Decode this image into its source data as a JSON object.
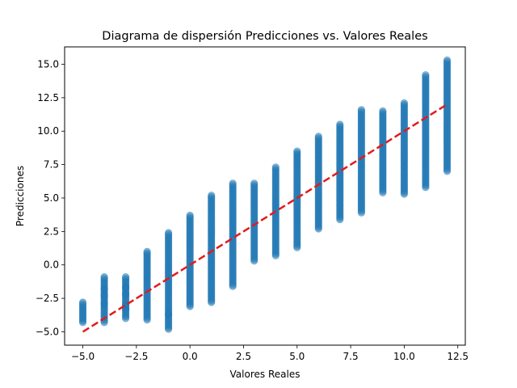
{
  "chart_data": {
    "type": "scatter",
    "title": "Diagrama de dispersión Predicciones vs. Valores Reales",
    "xlabel": "Valores Reales",
    "ylabel": "Predicciones",
    "xlim": [
      -5.85,
      12.85
    ],
    "ylim": [
      -6.0,
      16.3
    ],
    "x_ticks": [
      -5.0,
      -2.5,
      0.0,
      2.5,
      5.0,
      7.5,
      10.0,
      12.5
    ],
    "x_tick_labels": [
      "−5.0",
      "−2.5",
      "0.0",
      "2.5",
      "5.0",
      "7.5",
      "10.0",
      "12.5"
    ],
    "y_ticks": [
      -5.0,
      -2.5,
      0.0,
      2.5,
      5.0,
      7.5,
      10.0,
      12.5,
      15.0
    ],
    "y_tick_labels": [
      "−5.0",
      "−2.5",
      "0.0",
      "2.5",
      "5.0",
      "7.5",
      "10.0",
      "12.5",
      "15.0"
    ],
    "grid": false,
    "point_color": "#1f77b4",
    "point_alpha": 0.5,
    "reference_line": {
      "x": [
        -5,
        12
      ],
      "y": [
        -5,
        12
      ],
      "color": "#e41a1c",
      "style": "dashed"
    },
    "columns": [
      {
        "x": -5,
        "min": -4.3,
        "max": -2.8,
        "extra": []
      },
      {
        "x": -4,
        "min": -4.3,
        "max": -0.9,
        "extra": [
          -2.9,
          -2.3,
          -1.8
        ]
      },
      {
        "x": -3,
        "min": -4.0,
        "max": -0.9,
        "extra": [
          -3.3,
          -3.0,
          -2.2,
          -1.7
        ]
      },
      {
        "x": -2,
        "min": -4.1,
        "max": 1.0,
        "extra": []
      },
      {
        "x": -1,
        "min": -4.8,
        "max": 2.4,
        "extra": [
          -3.7
        ]
      },
      {
        "x": 0,
        "min": -3.1,
        "max": 3.7,
        "extra": []
      },
      {
        "x": 1,
        "min": -2.8,
        "max": 5.2,
        "extra": []
      },
      {
        "x": 2,
        "min": -1.6,
        "max": 6.1,
        "extra": []
      },
      {
        "x": 3,
        "min": 0.3,
        "max": 6.1,
        "extra": []
      },
      {
        "x": 4,
        "min": 0.7,
        "max": 7.3,
        "extra": []
      },
      {
        "x": 5,
        "min": 1.3,
        "max": 8.5,
        "extra": []
      },
      {
        "x": 6,
        "min": 2.7,
        "max": 9.6,
        "extra": []
      },
      {
        "x": 7,
        "min": 3.4,
        "max": 10.5,
        "extra": []
      },
      {
        "x": 8,
        "min": 3.9,
        "max": 11.6,
        "extra": []
      },
      {
        "x": 9,
        "min": 5.4,
        "max": 11.5,
        "extra": []
      },
      {
        "x": 10,
        "min": 5.3,
        "max": 12.1,
        "extra": []
      },
      {
        "x": 11,
        "min": 5.8,
        "max": 14.2,
        "extra": []
      },
      {
        "x": 12,
        "min": 7.0,
        "max": 15.3,
        "extra": []
      }
    ]
  }
}
